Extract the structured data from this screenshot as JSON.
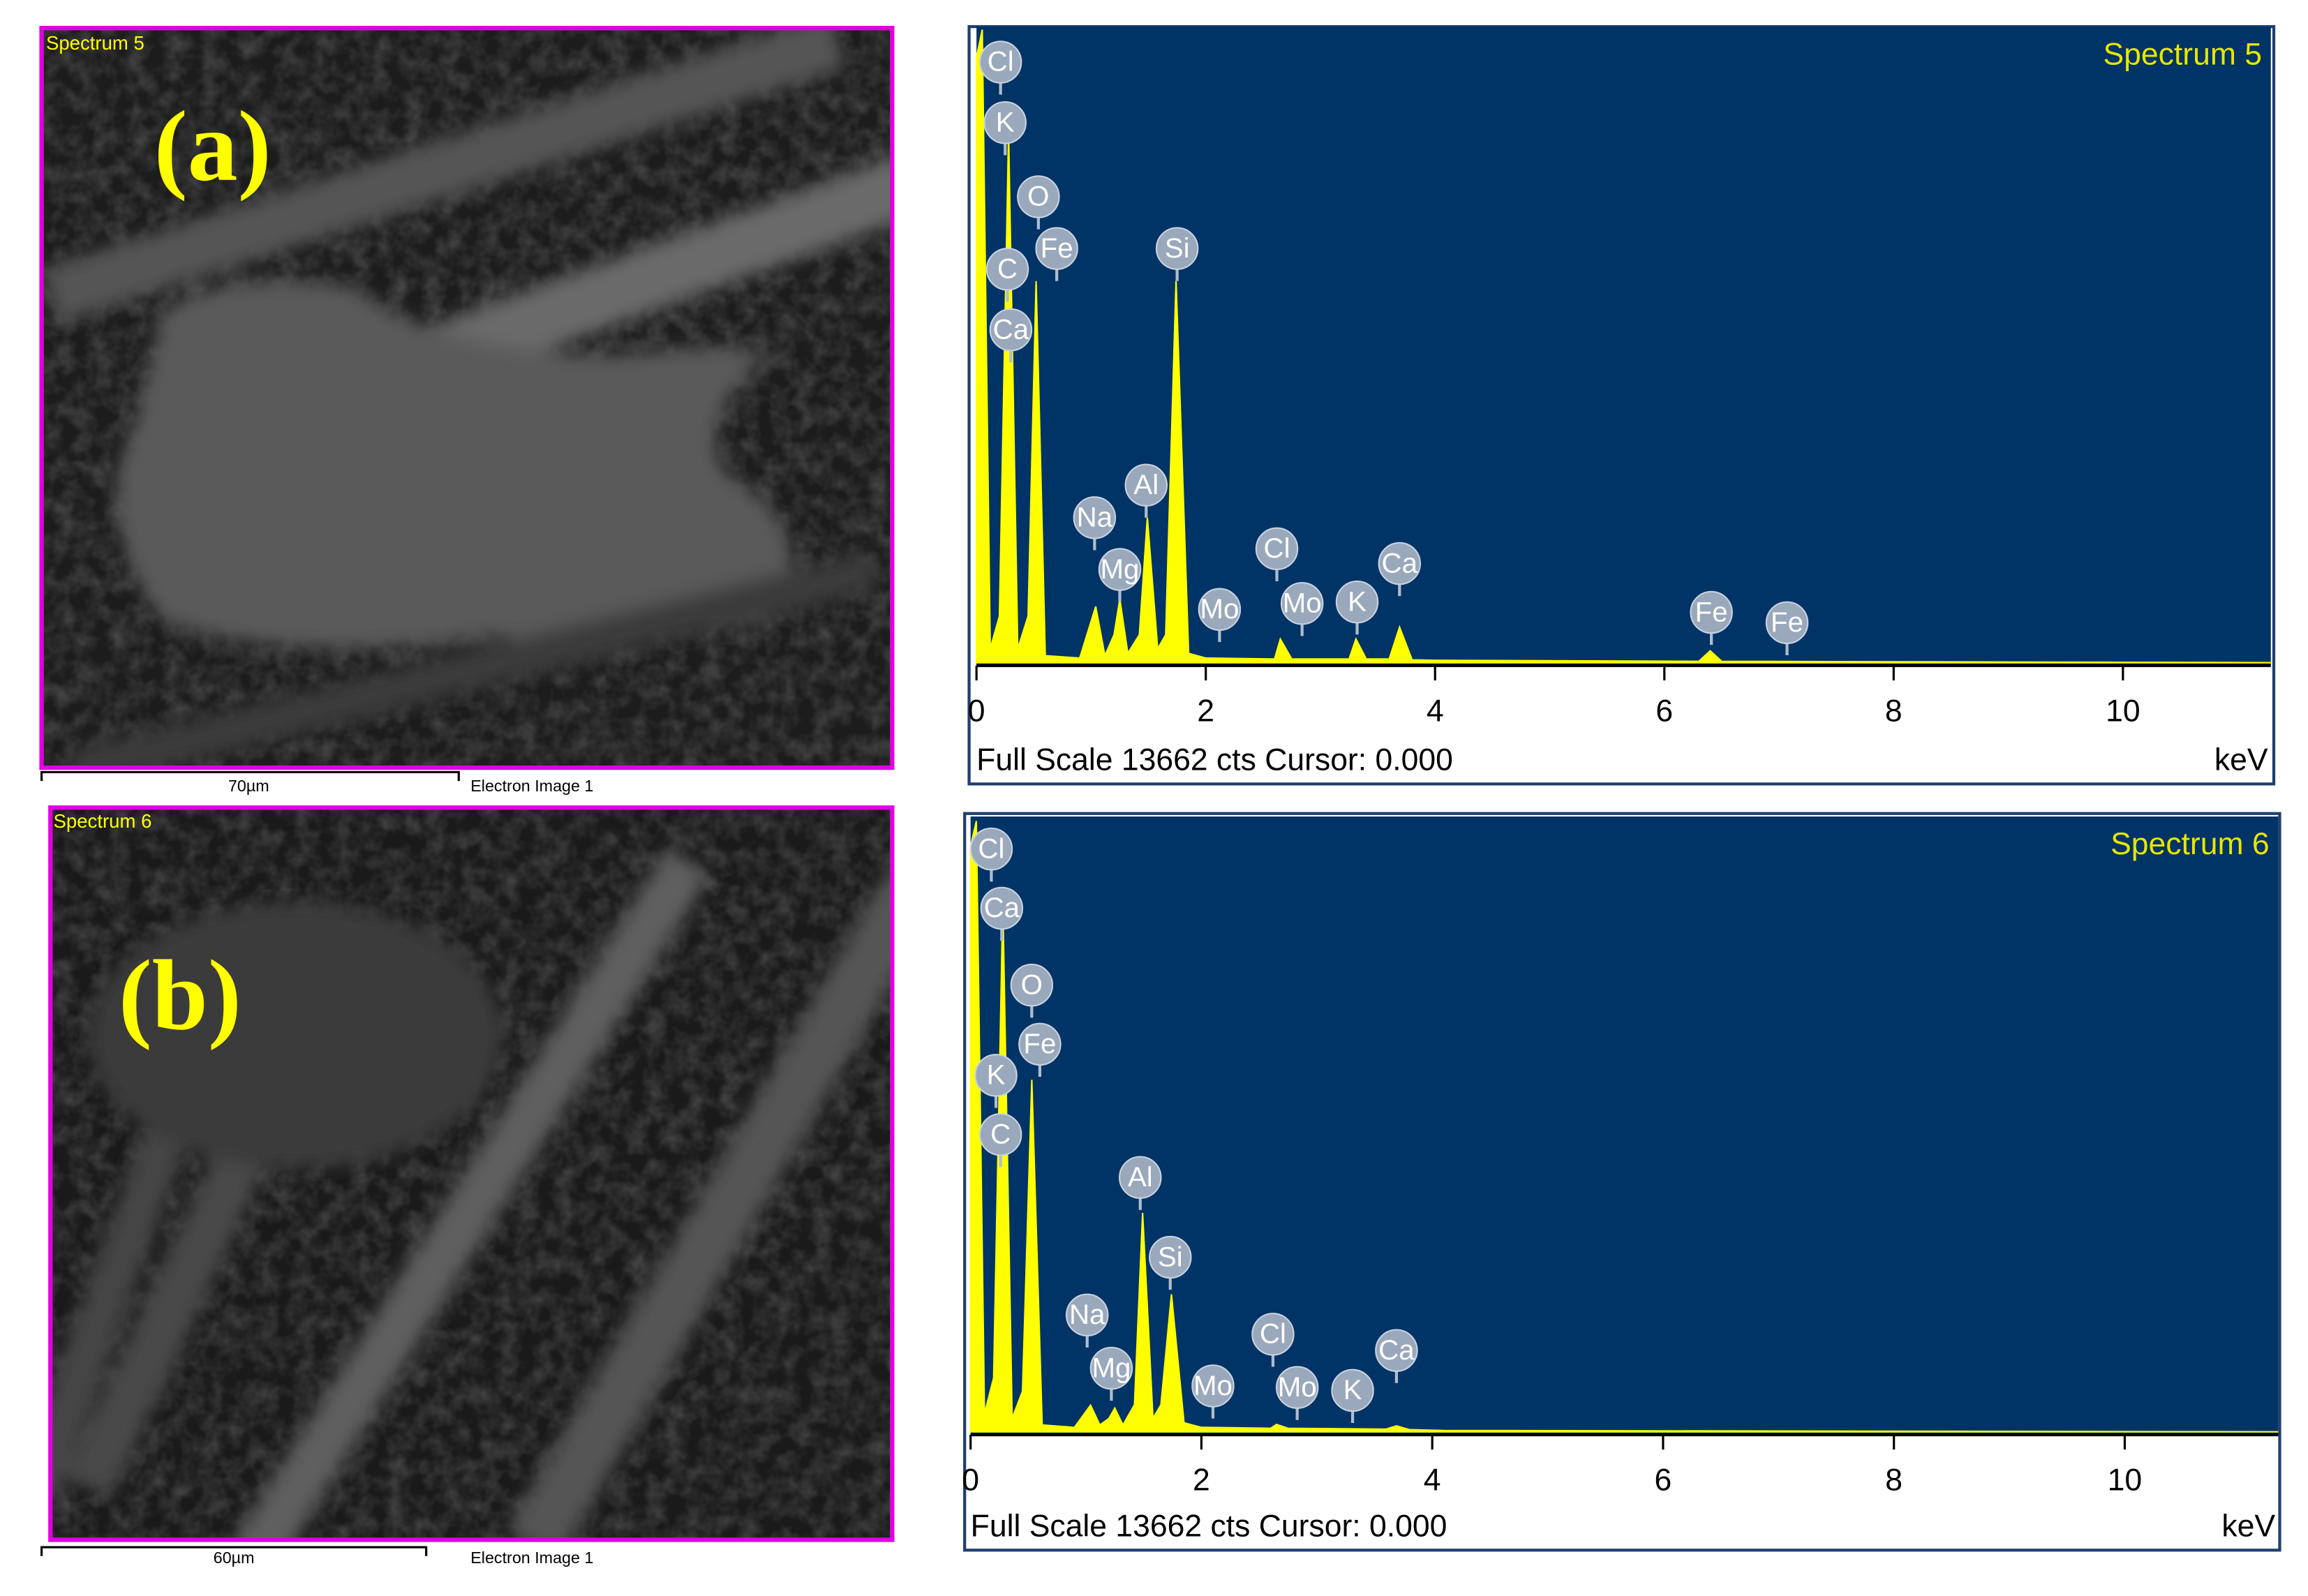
{
  "images": [
    {
      "label": "(a)",
      "spectrum": "Spectrum 5",
      "scale": "70µm",
      "caption": "Electron Image 1"
    },
    {
      "label": "(b)",
      "spectrum": "Spectrum 6",
      "scale": "60µm",
      "caption": "Electron Image 1"
    }
  ],
  "chart_data": [
    {
      "type": "area",
      "title": "Spectrum 5",
      "footer": "Full Scale 13662 cts Cursor: 0.000",
      "xlabel": "keV",
      "color": "#ffff00",
      "xlim": [
        0,
        11.29
      ],
      "xticks": [
        0,
        2,
        4,
        6,
        8,
        10
      ],
      "ylim": [
        0,
        13662
      ],
      "x": [
        0,
        0.05,
        0.12,
        0.2,
        0.28,
        0.36,
        0.45,
        0.52,
        0.6,
        0.9,
        1.04,
        1.12,
        1.2,
        1.25,
        1.32,
        1.42,
        1.49,
        1.58,
        1.65,
        1.74,
        1.85,
        2.0,
        2.6,
        2.65,
        2.75,
        3.25,
        3.31,
        3.4,
        3.6,
        3.69,
        3.8,
        4.0,
        6.3,
        6.4,
        6.5,
        11.29
      ],
      "values": [
        13000,
        13599,
        300,
        1000,
        11374,
        300,
        1000,
        8197,
        150,
        100,
        1207,
        150,
        600,
        1366,
        200,
        600,
        3114,
        300,
        600,
        8197,
        200,
        100,
        80,
        508,
        80,
        80,
        508,
        80,
        80,
        763,
        60,
        50,
        30,
        254,
        30,
        0
      ],
      "peak_labels": [
        {
          "label": "Cl",
          "x": 0.21,
          "y": 12900
        },
        {
          "label": "K",
          "x": 0.25,
          "y": 11600
        },
        {
          "label": "O",
          "x": 0.54,
          "y": 10007
        },
        {
          "label": "Fe",
          "x": 0.7,
          "y": 8896
        },
        {
          "label": "C",
          "x": 0.27,
          "y": 8451
        },
        {
          "label": "Ca",
          "x": 0.3,
          "y": 7149
        },
        {
          "label": "Si",
          "x": 1.75,
          "y": 8896
        },
        {
          "label": "Al",
          "x": 1.48,
          "y": 3813
        },
        {
          "label": "Na",
          "x": 1.03,
          "y": 3114
        },
        {
          "label": "Mg",
          "x": 1.25,
          "y": 2002
        },
        {
          "label": "Mo",
          "x": 2.12,
          "y": 1144
        },
        {
          "label": "Cl",
          "x": 2.62,
          "y": 2447
        },
        {
          "label": "Mo",
          "x": 2.84,
          "y": 1271
        },
        {
          "label": "K",
          "x": 3.32,
          "y": 1303
        },
        {
          "label": "Ca",
          "x": 3.69,
          "y": 2129
        },
        {
          "label": "Fe",
          "x": 6.41,
          "y": 1080
        },
        {
          "label": "Fe",
          "x": 7.07,
          "y": 858
        }
      ]
    },
    {
      "type": "area",
      "title": "Spectrum 6",
      "footer": "Full Scale 13662 cts Cursor: 0.000",
      "xlabel": "keV",
      "color": "#ffff00",
      "xlim": [
        0,
        11.33
      ],
      "xticks": [
        0,
        2,
        4,
        6,
        8,
        10
      ],
      "ylim": [
        0,
        13662
      ],
      "x": [
        0,
        0.05,
        0.12,
        0.2,
        0.28,
        0.36,
        0.45,
        0.53,
        0.62,
        0.9,
        1.04,
        1.12,
        1.2,
        1.25,
        1.32,
        1.42,
        1.49,
        1.58,
        1.65,
        1.74,
        1.85,
        2.0,
        2.6,
        2.65,
        2.75,
        3.6,
        3.69,
        3.8,
        4.1,
        11.33
      ],
      "values": [
        13000,
        13560,
        400,
        1200,
        11757,
        300,
        900,
        7816,
        150,
        100,
        591,
        150,
        300,
        525,
        150,
        600,
        4861,
        300,
        600,
        3054,
        200,
        100,
        80,
        164,
        80,
        60,
        131,
        50,
        30,
        0
      ],
      "peak_labels": [
        {
          "label": "Cl",
          "x": 0.18,
          "y": 12939
        },
        {
          "label": "Ca",
          "x": 0.27,
          "y": 11625
        },
        {
          "label": "O",
          "x": 0.53,
          "y": 9918
        },
        {
          "label": "Fe",
          "x": 0.6,
          "y": 8605
        },
        {
          "label": "K",
          "x": 0.22,
          "y": 7915
        },
        {
          "label": "C",
          "x": 0.26,
          "y": 6601
        },
        {
          "label": "Al",
          "x": 1.47,
          "y": 5648
        },
        {
          "label": "Si",
          "x": 1.73,
          "y": 3876
        },
        {
          "label": "Na",
          "x": 1.01,
          "y": 2594
        },
        {
          "label": "Mg",
          "x": 1.22,
          "y": 1412
        },
        {
          "label": "Mo",
          "x": 2.1,
          "y": 1018
        },
        {
          "label": "Cl",
          "x": 2.62,
          "y": 2167
        },
        {
          "label": "Mo",
          "x": 2.83,
          "y": 985
        },
        {
          "label": "K",
          "x": 3.31,
          "y": 920
        },
        {
          "label": "Ca",
          "x": 3.69,
          "y": 1806
        }
      ]
    }
  ]
}
